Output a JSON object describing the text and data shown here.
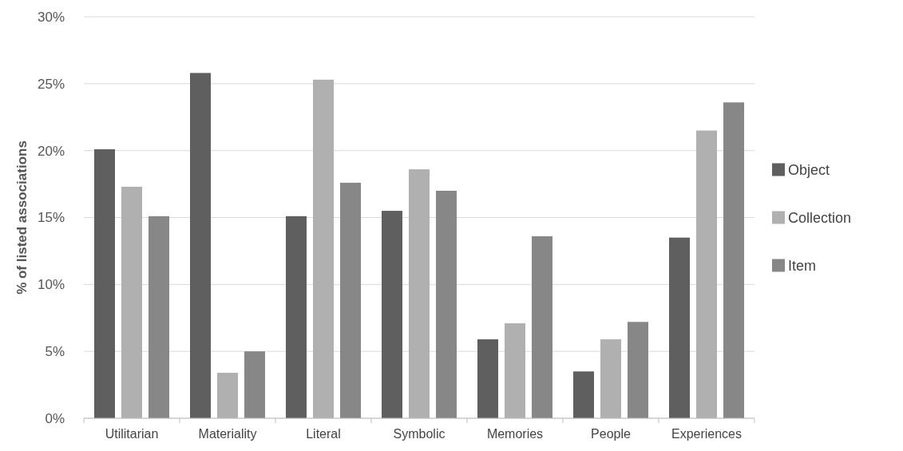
{
  "chart_data": {
    "type": "bar",
    "ylabel": "% of listed associations",
    "categories": [
      "Utilitarian",
      "Materiality",
      "Literal",
      "Symbolic",
      "Memories",
      "People",
      "Experiences"
    ],
    "series": [
      {
        "name": "Object",
        "color": "#5f5f5f",
        "values": [
          20.1,
          25.8,
          15.1,
          15.5,
          5.9,
          3.5,
          13.5
        ]
      },
      {
        "name": "Collection",
        "color": "#b0b0b0",
        "values": [
          17.3,
          3.4,
          25.3,
          18.6,
          7.1,
          5.9,
          21.5
        ]
      },
      {
        "name": "Item",
        "color": "#878787",
        "values": [
          15.1,
          5.0,
          17.6,
          17.0,
          13.6,
          7.2,
          23.6
        ]
      }
    ],
    "ylim": [
      0,
      30
    ],
    "yticks": [
      {
        "value": 0,
        "label": "0%"
      },
      {
        "value": 5,
        "label": "5%"
      },
      {
        "value": 10,
        "label": "10%"
      },
      {
        "value": 15,
        "label": "15%"
      },
      {
        "value": 20,
        "label": "20%"
      },
      {
        "value": 25,
        "label": "25%"
      },
      {
        "value": 30,
        "label": "30%"
      }
    ],
    "grid": "y",
    "legend": "right"
  }
}
